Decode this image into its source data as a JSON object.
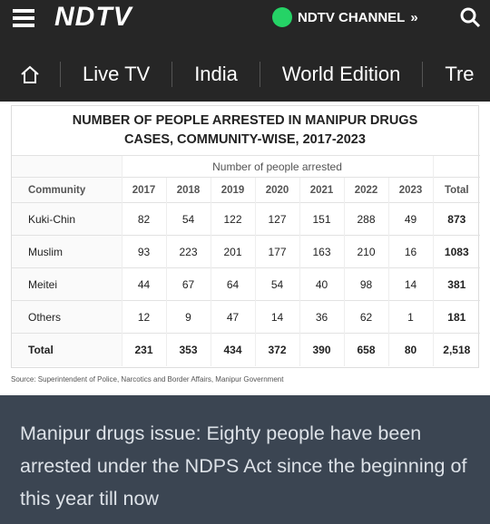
{
  "header": {
    "logo": "NDTV",
    "channel": "NDTV CHANNEL",
    "nav": [
      "Live TV",
      "India",
      "World Edition",
      "Tre"
    ]
  },
  "table": {
    "title": "NUMBER OF PEOPLE ARRESTED IN MANIPUR DRUGS CASES, COMMUNITY-WISE, 2017-2023",
    "group_header": "Number of people arrested",
    "header": [
      "Community",
      "2017",
      "2018",
      "2019",
      "2020",
      "2021",
      "2022",
      "2023",
      "Total"
    ],
    "rows": [
      [
        "Kuki-Chin",
        "82",
        "54",
        "122",
        "127",
        "151",
        "288",
        "49",
        "873"
      ],
      [
        "Muslim",
        "93",
        "223",
        "201",
        "177",
        "163",
        "210",
        "16",
        "1083"
      ],
      [
        "Meitei",
        "44",
        "67",
        "64",
        "54",
        "40",
        "98",
        "14",
        "381"
      ],
      [
        "Others",
        "12",
        "9",
        "47",
        "14",
        "36",
        "62",
        "1",
        "181"
      ],
      [
        "Total",
        "231",
        "353",
        "434",
        "372",
        "390",
        "658",
        "80",
        "2,518"
      ]
    ],
    "source": "Source: Superintendent of Police, Narcotics and Border Affairs, Manipur Government"
  },
  "article": {
    "headline": "Manipur drugs issue: Eighty people have been arrested under the NDPS Act since the beginning of this year till now"
  }
}
